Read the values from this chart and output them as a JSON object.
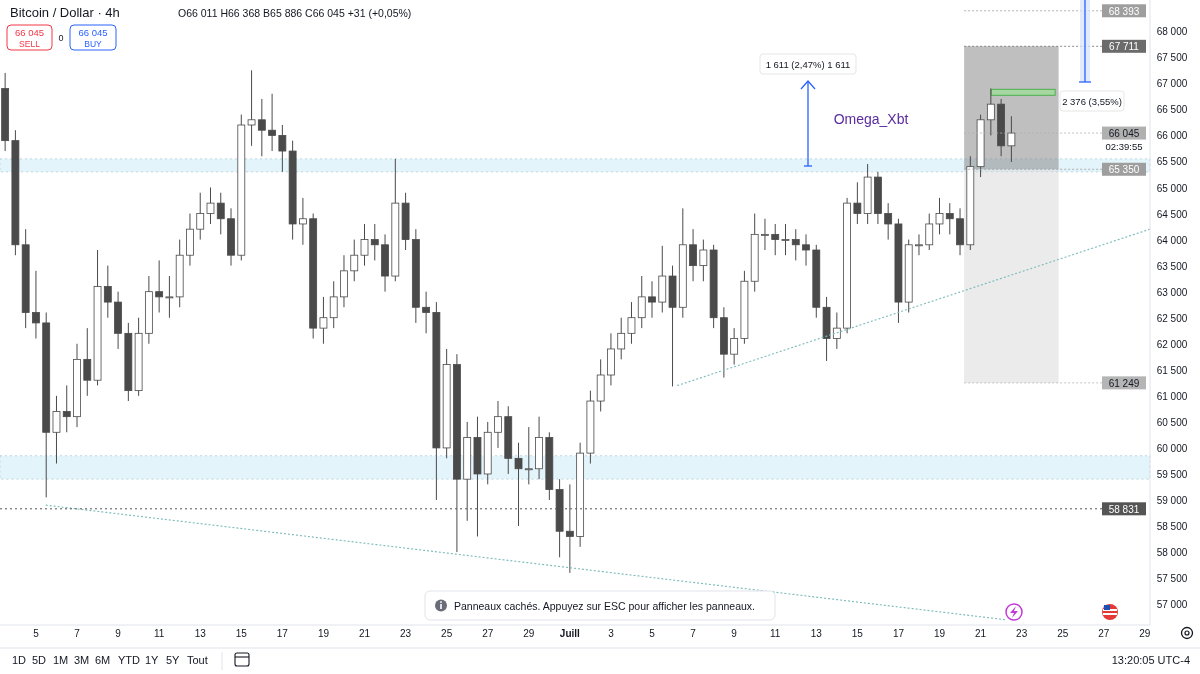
{
  "chart_data": {
    "type": "candlestick",
    "title": "Bitcoin / Dollar · 4h",
    "subtitle": "O66 011 H66 368 B65 886 C66 045 +31 (+0,05%)",
    "color": "#4a4a4a",
    "x": [
      "--06-03T12:00",
      "--06-04T00:00",
      "--06-04T12:00",
      "--06-05T00:00",
      "--06-05T12:00",
      "--06-06T00:00",
      "--06-06T12:00",
      "--06-07T00:00",
      "--06-07T12:00",
      "--06-08T00:00",
      "--06-08T12:00",
      "--06-09T00:00",
      "--06-09T12:00",
      "--06-10T00:00",
      "--06-10T12:00",
      "--06-11T00:00",
      "--06-11T12:00",
      "--06-12T00:00",
      "--06-12T12:00",
      "--06-13T00:00",
      "--06-13T12:00",
      "--06-14T00:00",
      "--06-14T12:00",
      "--06-15T00:00",
      "--06-15T12:00",
      "--06-16T00:00",
      "--06-16T12:00",
      "--06-17T00:00",
      "--06-17T12:00",
      "--06-18T00:00",
      "--06-18T12:00",
      "--06-19T00:00",
      "--06-19T12:00",
      "--06-20T00:00",
      "--06-20T12:00",
      "--06-21T00:00",
      "--06-21T12:00",
      "--06-22T00:00",
      "--06-22T12:00",
      "--06-23T00:00",
      "--06-23T12:00",
      "--06-24T00:00",
      "--06-24T12:00",
      "--06-25T00:00",
      "--06-25T12:00",
      "--06-26T00:00",
      "--06-26T12:00",
      "--06-27T00:00",
      "--06-27T12:00",
      "--06-28T00:00",
      "--06-28T12:00",
      "--06-29T00:00",
      "--06-29T12:00",
      "--06-30T00:00",
      "--06-30T12:00",
      "--07-01T00:00",
      "--07-01T12:00",
      "--07-02T00:00",
      "--07-02T12:00",
      "--07-03T00:00",
      "--07-03T12:00",
      "--07-04T00:00",
      "--07-04T12:00",
      "--07-05T00:00",
      "--07-05T12:00",
      "--07-06T00:00",
      "--07-06T12:00",
      "--07-07T00:00",
      "--07-07T12:00",
      "--07-08T00:00",
      "--07-08T12:00",
      "--07-09T00:00",
      "--07-09T12:00",
      "--07-10T00:00",
      "--07-10T12:00",
      "--07-11T00:00",
      "--07-11T12:00",
      "--07-12T00:00",
      "--07-12T12:00",
      "--07-13T00:00",
      "--07-13T12:00",
      "--07-14T00:00",
      "--07-14T12:00",
      "--07-15T00:00",
      "--07-15T12:00",
      "--07-16T00:00",
      "--07-16T12:00",
      "--07-17T00:00",
      "--07-17T12:00",
      "--07-18T00:00",
      "--07-18T12:00",
      "--07-19T00:00",
      "--07-19T12:00",
      "--07-20T00:00",
      "--07-20T12:00",
      "--07-21T00:00",
      "--07-21T12:00",
      "--07-22T00:00",
      "--07-22T12:00"
    ],
    "ohlc": [
      [
        66900,
        67200,
        65700,
        65900
      ],
      [
        65900,
        66100,
        63700,
        63900
      ],
      [
        63900,
        64200,
        62300,
        62600
      ],
      [
        62600,
        63400,
        62100,
        62400
      ],
      [
        62400,
        62600,
        59050,
        60300
      ],
      [
        60300,
        61000,
        59700,
        60700
      ],
      [
        60700,
        61200,
        60300,
        60600
      ],
      [
        60600,
        62000,
        60400,
        61700
      ],
      [
        61700,
        62300,
        61000,
        61300
      ],
      [
        61300,
        63800,
        61200,
        63100
      ],
      [
        63100,
        63500,
        62500,
        62800
      ],
      [
        62800,
        63000,
        61900,
        62200
      ],
      [
        62200,
        62400,
        60900,
        61100
      ],
      [
        61100,
        62500,
        61000,
        62200
      ],
      [
        62200,
        63300,
        62000,
        63000
      ],
      [
        63000,
        63600,
        62600,
        62900
      ],
      [
        62900,
        63300,
        62500,
        62900
      ],
      [
        62900,
        64000,
        62700,
        63700
      ],
      [
        63700,
        64500,
        63500,
        64200
      ],
      [
        64200,
        64900,
        64000,
        64500
      ],
      [
        64500,
        65000,
        64300,
        64700
      ],
      [
        64700,
        64900,
        64100,
        64400
      ],
      [
        64400,
        64600,
        63500,
        63700
      ],
      [
        63700,
        66400,
        63600,
        66200
      ],
      [
        66200,
        67250,
        65800,
        66300
      ],
      [
        66300,
        66700,
        65600,
        66100
      ],
      [
        66100,
        66800,
        65700,
        66000
      ],
      [
        66000,
        66200,
        65300,
        65700
      ],
      [
        65700,
        65900,
        64000,
        64300
      ],
      [
        64300,
        64800,
        63900,
        64400
      ],
      [
        64400,
        64500,
        62100,
        62300
      ],
      [
        62300,
        62900,
        62000,
        62500
      ],
      [
        62500,
        63200,
        62300,
        62900
      ],
      [
        62900,
        63700,
        62700,
        63400
      ],
      [
        63400,
        64000,
        63200,
        63700
      ],
      [
        63700,
        64300,
        63500,
        64000
      ],
      [
        64000,
        64300,
        63600,
        63900
      ],
      [
        63900,
        64100,
        63000,
        63300
      ],
      [
        63300,
        65550,
        63200,
        64700
      ],
      [
        64700,
        64900,
        63800,
        64000
      ],
      [
        64000,
        64200,
        62400,
        62700
      ],
      [
        62700,
        63000,
        62200,
        62600
      ],
      [
        62600,
        62800,
        59000,
        60000
      ],
      [
        60000,
        61900,
        59800,
        61600
      ],
      [
        61600,
        61800,
        58000,
        59400
      ],
      [
        59400,
        60500,
        58600,
        60200
      ],
      [
        60200,
        60600,
        58300,
        59500
      ],
      [
        59500,
        60500,
        59300,
        60300
      ],
      [
        60300,
        60900,
        60000,
        60600
      ],
      [
        60600,
        60800,
        59500,
        59800
      ],
      [
        59800,
        60100,
        58500,
        59600
      ],
      [
        59600,
        60400,
        59300,
        59600
      ],
      [
        59600,
        60600,
        59400,
        60200
      ],
      [
        60200,
        60300,
        59000,
        59200
      ],
      [
        59200,
        59400,
        57900,
        58400
      ],
      [
        58400,
        59300,
        57600,
        58300
      ],
      [
        58300,
        60100,
        58100,
        59900
      ],
      [
        59900,
        61100,
        59700,
        60900
      ],
      [
        60900,
        61700,
        60700,
        61400
      ],
      [
        61400,
        62200,
        61200,
        61900
      ],
      [
        61900,
        62500,
        61700,
        62200
      ],
      [
        62200,
        62800,
        62000,
        62500
      ],
      [
        62500,
        63300,
        62300,
        62900
      ],
      [
        62900,
        63200,
        62500,
        62800
      ],
      [
        62800,
        63880,
        62600,
        63300
      ],
      [
        63300,
        63500,
        61180,
        62700
      ],
      [
        62700,
        64600,
        62500,
        63900
      ],
      [
        63900,
        64200,
        63200,
        63500
      ],
      [
        63500,
        64000,
        63200,
        63800
      ],
      [
        63800,
        63900,
        62300,
        62500
      ],
      [
        62500,
        62700,
        61350,
        61800
      ],
      [
        61800,
        62300,
        61600,
        62100
      ],
      [
        62100,
        63400,
        62000,
        63200
      ],
      [
        63200,
        64500,
        63000,
        64100
      ],
      [
        64100,
        64400,
        63800,
        64100
      ],
      [
        64100,
        64300,
        63700,
        64000
      ],
      [
        64000,
        64300,
        63700,
        64000
      ],
      [
        64000,
        64200,
        63600,
        63900
      ],
      [
        63900,
        64100,
        63500,
        63800
      ],
      [
        63800,
        63900,
        62500,
        62700
      ],
      [
        62700,
        62900,
        61670,
        62100
      ],
      [
        62100,
        62600,
        61900,
        62300
      ],
      [
        62300,
        64800,
        62200,
        64700
      ],
      [
        64700,
        65100,
        64300,
        64500
      ],
      [
        64500,
        65450,
        64300,
        65200
      ],
      [
        65200,
        65300,
        64300,
        64500
      ],
      [
        64500,
        64700,
        64000,
        64300
      ],
      [
        64300,
        64400,
        62400,
        62800
      ],
      [
        62800,
        64000,
        62600,
        63900
      ],
      [
        63900,
        64100,
        63700,
        63900
      ],
      [
        63900,
        64500,
        63800,
        64300
      ],
      [
        64300,
        64800,
        64100,
        64500
      ],
      [
        64500,
        64700,
        64100,
        64400
      ],
      [
        64400,
        64600,
        63700,
        63900
      ],
      [
        63900,
        65600,
        63800,
        65400
      ],
      [
        65400,
        66400,
        65200,
        66300
      ],
      [
        66300,
        66900,
        66000,
        66600
      ],
      [
        66600,
        66700,
        65600,
        65800
      ],
      [
        65800,
        66368,
        65490,
        66045
      ]
    ],
    "series": [
      {
        "type": "line",
        "x": [
          "--07-06T06:00",
          "--07-29T06:00"
        ],
        "values": [
          61200,
          64200
        ],
        "color": "#7fbcbc",
        "line_style": "dotted"
      },
      {
        "type": "line",
        "x": [
          "--06-05T12:00",
          "--07-22T06:00"
        ],
        "values": [
          58900,
          56700
        ],
        "color": "#7fbcbc",
        "line_style": "dotted"
      }
    ],
    "xlim": [
      "--06-03T06:00",
      "--07-29T06:00"
    ],
    "xticks": [
      {
        "value": "--06-05",
        "label": "5"
      },
      {
        "value": "--06-07",
        "label": "7"
      },
      {
        "value": "--06-09",
        "label": "9"
      },
      {
        "value": "--06-11",
        "label": "11"
      },
      {
        "value": "--06-13",
        "label": "13"
      },
      {
        "value": "--06-15",
        "label": "15"
      },
      {
        "value": "--06-17",
        "label": "17"
      },
      {
        "value": "--06-19",
        "label": "19"
      },
      {
        "value": "--06-21",
        "label": "21"
      },
      {
        "value": "--06-23",
        "label": "23"
      },
      {
        "value": "--06-25",
        "label": "25"
      },
      {
        "value": "--06-27",
        "label": "27"
      },
      {
        "value": "--06-29",
        "label": "29"
      },
      {
        "value": "--07-01",
        "label": "Juill"
      },
      {
        "value": "--07-03",
        "label": "3"
      },
      {
        "value": "--07-05",
        "label": "5"
      },
      {
        "value": "--07-07",
        "label": "7"
      },
      {
        "value": "--07-09",
        "label": "9"
      },
      {
        "value": "--07-11",
        "label": "11"
      },
      {
        "value": "--07-13",
        "label": "13"
      },
      {
        "value": "--07-15",
        "label": "15"
      },
      {
        "value": "--07-17",
        "label": "17"
      },
      {
        "value": "--07-19",
        "label": "19"
      },
      {
        "value": "--07-21",
        "label": "21"
      },
      {
        "value": "--07-23",
        "label": "23"
      },
      {
        "value": "--07-25",
        "label": "25"
      },
      {
        "value": "--07-27",
        "label": "27"
      },
      {
        "value": "--07-29",
        "label": "29"
      }
    ],
    "ylim": [
      56600,
      68600
    ],
    "yticks": [
      {
        "value": 57000,
        "label": "57 000"
      },
      {
        "value": 57500,
        "label": "57 500"
      },
      {
        "value": 58000,
        "label": "58 000"
      },
      {
        "value": 58500,
        "label": "58 500"
      },
      {
        "value": 59000,
        "label": "59 000"
      },
      {
        "value": 59500,
        "label": "59 500"
      },
      {
        "value": 60000,
        "label": "60 000"
      },
      {
        "value": 60500,
        "label": "60 500"
      },
      {
        "value": 61000,
        "label": "61 000"
      },
      {
        "value": 61500,
        "label": "61 500"
      },
      {
        "value": 62000,
        "label": "62 000"
      },
      {
        "value": 62500,
        "label": "62 500"
      },
      {
        "value": 63000,
        "label": "63 000"
      },
      {
        "value": 63500,
        "label": "63 500"
      },
      {
        "value": 64000,
        "label": "64 000"
      },
      {
        "value": 64500,
        "label": "64 500"
      },
      {
        "value": 65000,
        "label": "65 000"
      },
      {
        "value": 65500,
        "label": "65 500"
      },
      {
        "value": 66000,
        "label": "66 000"
      },
      {
        "value": 66500,
        "label": "66 500"
      },
      {
        "value": 67000,
        "label": "67 000"
      },
      {
        "value": 67500,
        "label": "67 500"
      },
      {
        "value": 68000,
        "label": "68 000"
      }
    ],
    "bands": [
      {
        "axis": "y",
        "from": 65300,
        "to": 65550,
        "color": "#e3f4fb"
      },
      {
        "axis": "y",
        "from": 59400,
        "to": 59850,
        "color": "#e3f4fb"
      }
    ],
    "ref_lines": [
      {
        "axis": "y",
        "value": 68393,
        "label": "68 393",
        "color": "#9e9e9e"
      },
      {
        "axis": "y",
        "value": 67711,
        "label": "67 711",
        "color": "#6b6b6b"
      },
      {
        "axis": "y",
        "value": 65350,
        "label": "65 350",
        "color": "#9e9e9e"
      },
      {
        "axis": "y",
        "value": 61249,
        "label": "61 249",
        "color": "#b5b5b5"
      },
      {
        "axis": "y",
        "value": 58831,
        "label": "58 831",
        "color": "#555555",
        "line_style": "dotted"
      },
      {
        "axis": "y",
        "value": 66045,
        "label": "66 045",
        "color": "#b0b0b0"
      }
    ],
    "annotations": [
      "66 045",
      "SELL",
      "0",
      "66 045",
      "BUY",
      "1 611 (2,47%) 1 611",
      "Omega_Xbt",
      "2 376 (3,55%)",
      "02:39:55",
      "Panneaux cachés. Appuyez sur ESC pour afficher les panneaux.",
      "1D",
      "5D",
      "1M",
      "3M",
      "6M",
      "YTD",
      "1Y",
      "5Y",
      "Tout",
      "13:20:05 UTC-4"
    ]
  }
}
